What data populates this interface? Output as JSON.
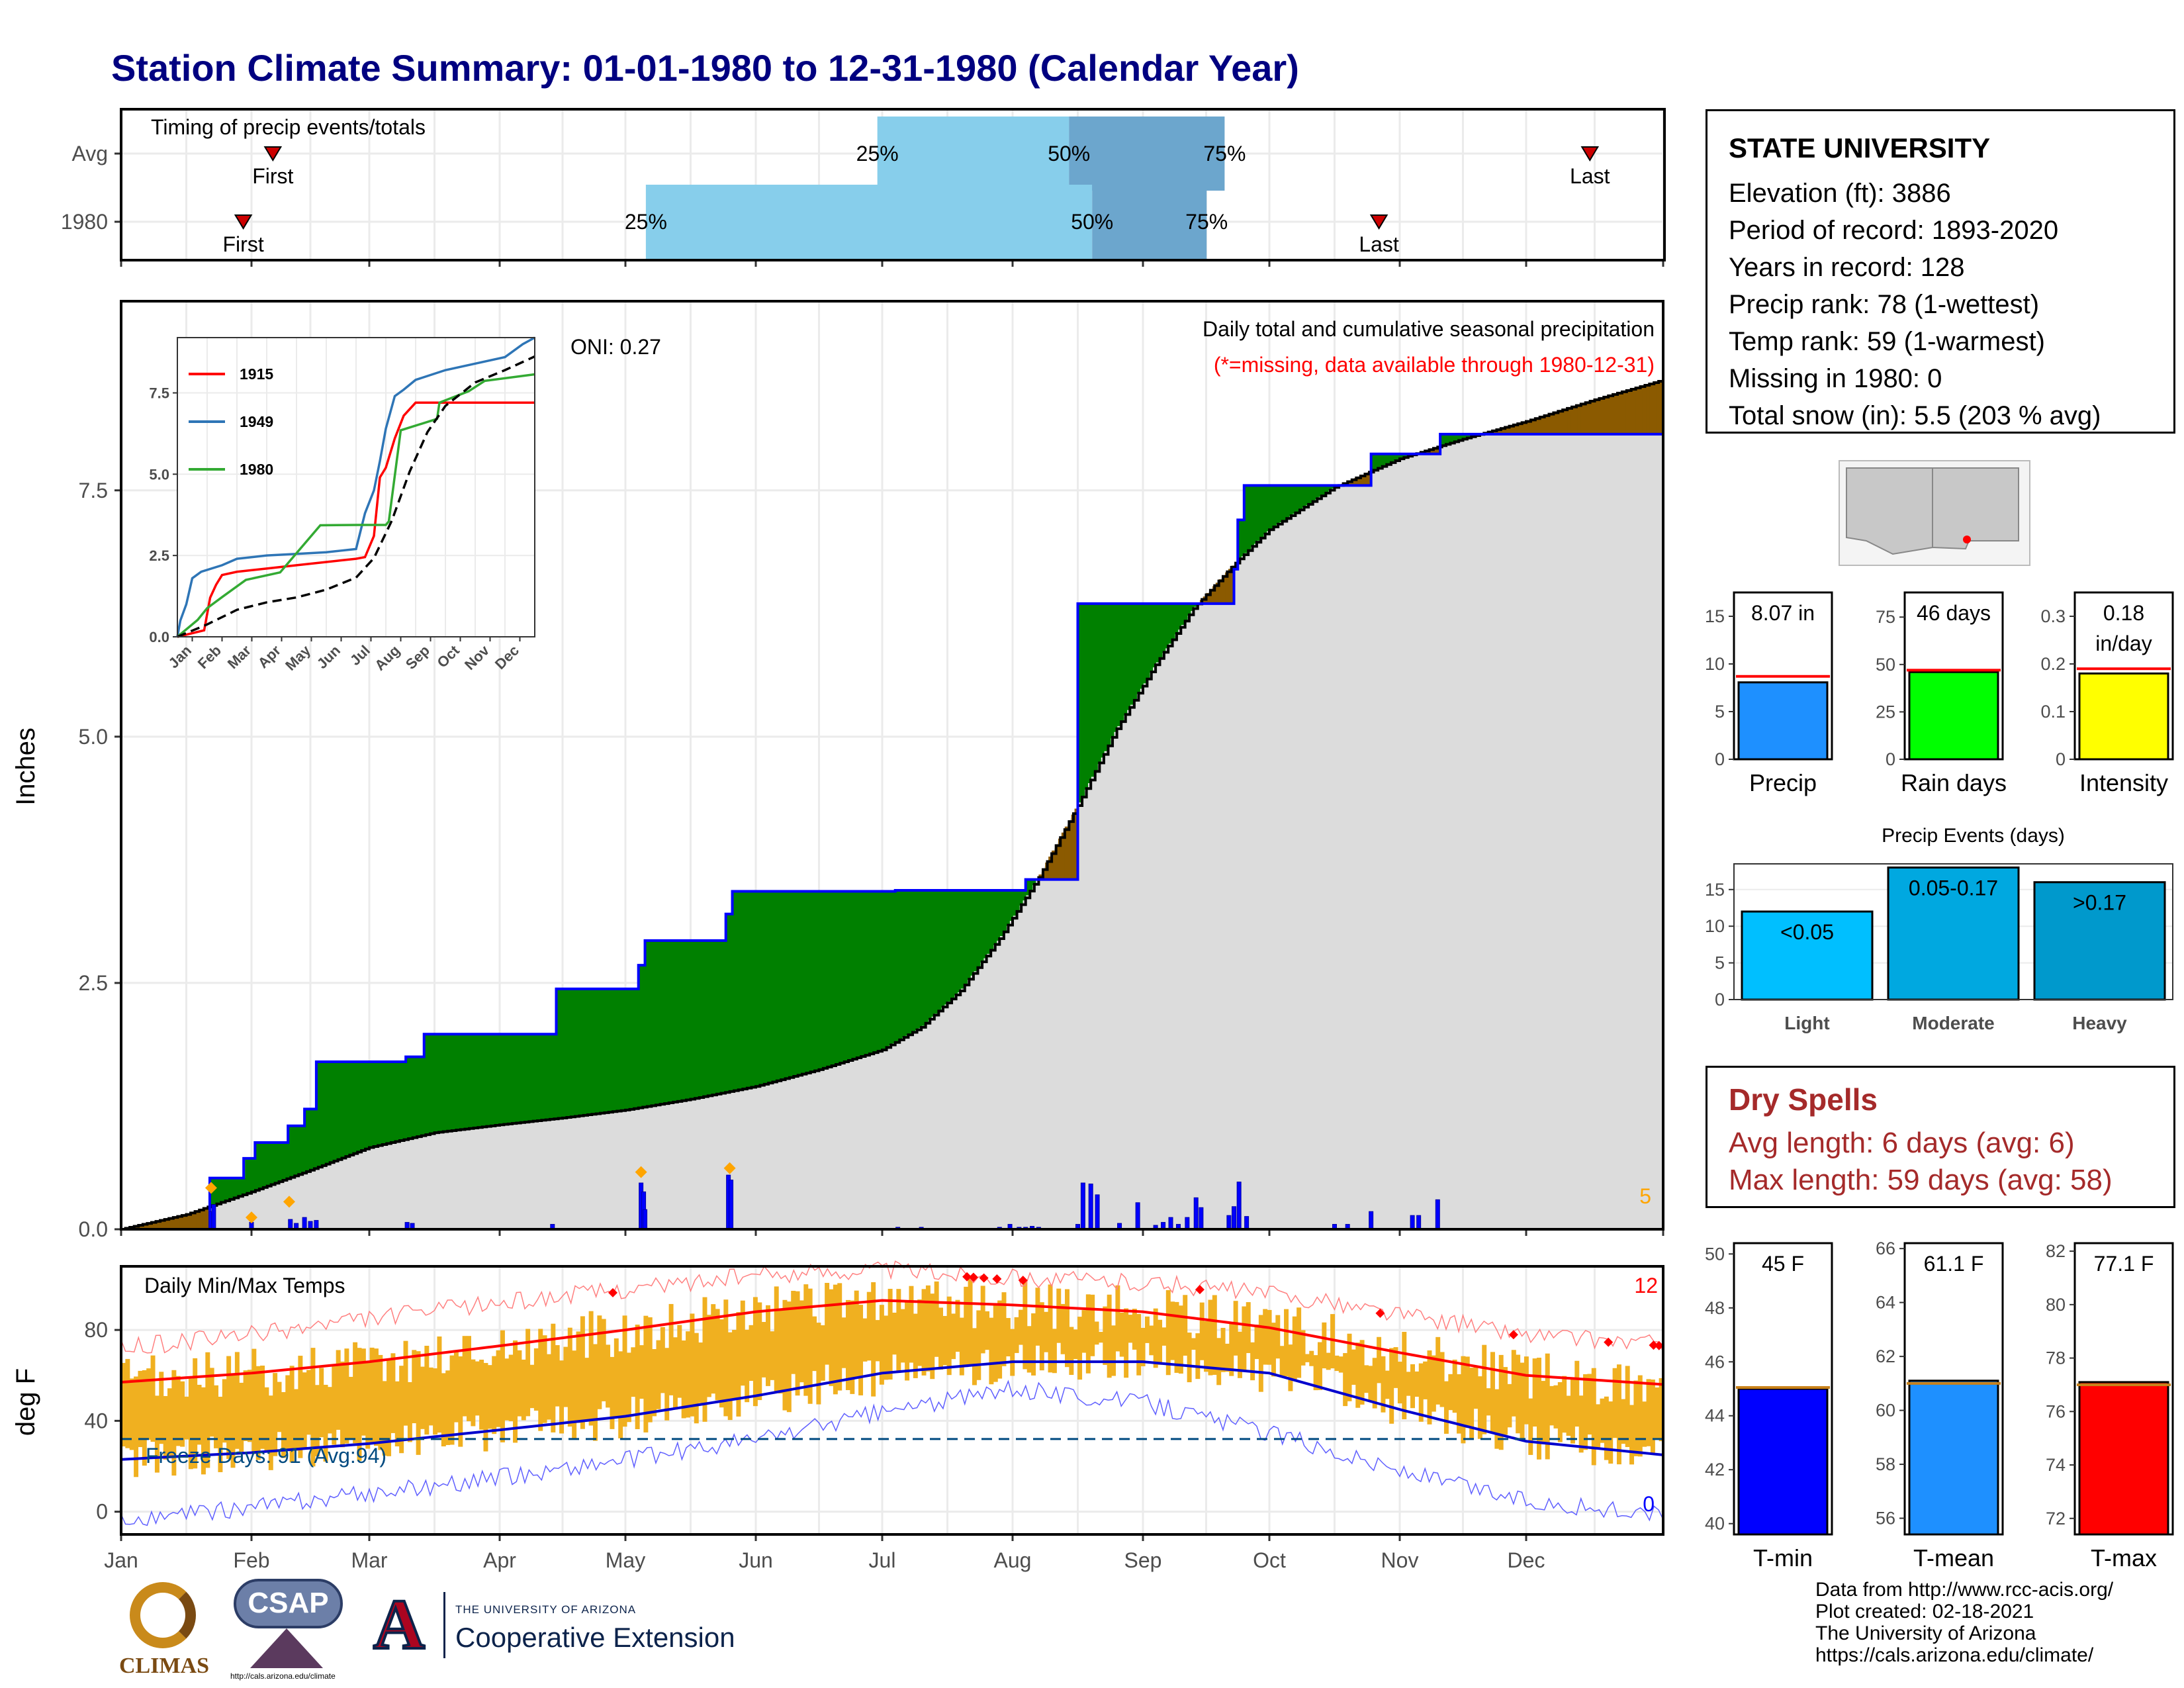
{
  "title": "Station Climate Summary: 01-01-1980 to 12-31-1980 (Calendar Year)",
  "station": {
    "name": "STATE UNIVERSITY",
    "lines": [
      "Elevation (ft): 3886",
      "Period of record: 1893-2020",
      "Years in record: 128",
      "Precip rank: 78 (1-wettest)",
      "Temp rank: 59 (1-warmest)",
      "Missing in 1980: 0",
      "Total snow (in): 5.5 (203 % avg)"
    ]
  },
  "dry_spells": {
    "title": "Dry Spells",
    "avg": "Avg length: 6 days (avg: 6)",
    "max": "Max length: 59 days (avg: 58)"
  },
  "credits": [
    "Data from http://www.rcc-acis.org/",
    "Plot created: 02-18-2021",
    "The University of Arizona",
    "https://cals.arizona.edu/climate/"
  ],
  "logos": {
    "climas": "CLIMAS",
    "csap": "CSAP",
    "csap_url": "http://cals.arizona.edu/climate",
    "ua_small": "THE UNIVERSITY OF ARIZONA",
    "ua_big": "Cooperative Extension",
    "ua_mark": "A"
  },
  "colors": {
    "title": "#000080",
    "timing_light": "#87ceeb",
    "timing_dark": "#6ca6cd",
    "surplus": "#008000",
    "deficit": "#8b5a00",
    "climatology_fill": "#dcdcdc",
    "daily_bar": "#0000ff",
    "temp_bar": "#f0b020",
    "tmax_line": "#ff0000",
    "tmin_line": "#0000cd",
    "precip_bar": "#1e90ff",
    "raindays_bar": "#00ff00",
    "intensity_bar": "#ffff00",
    "tmin_bar": "#0000ff",
    "tmean_bar": "#1e90ff",
    "tmax_bar": "#ff0000",
    "light_bar": "#00bfff",
    "moderate_bar": "#00a8e0",
    "heavy_bar": "#0099cc"
  },
  "chart_data": [
    {
      "id": "timing",
      "type": "bar",
      "title": "Timing of precip events/totals",
      "rows": [
        {
          "label": "Avg",
          "first": 1.18,
          "q25": 5.88,
          "q50": 7.37,
          "q75": 8.58,
          "last": 11.42
        },
        {
          "label": "1980",
          "first": 0.95,
          "q25": 4.08,
          "q50": 7.55,
          "q75": 8.44,
          "last": 9.78
        }
      ],
      "marker_labels": {
        "first": "First",
        "last": "Last",
        "q25": "25%",
        "q50": "50%",
        "q75": "75%"
      },
      "xlim": [
        0,
        12
      ]
    },
    {
      "id": "precip",
      "type": "area",
      "title": "Daily total and cumulative seasonal precipitation",
      "subtitle": "(*=missing, data available through 1980-12-31)",
      "ylabel": "Inches",
      "ylim": [
        0,
        9.42
      ],
      "yticks": [
        0.0,
        2.5,
        5.0,
        7.5
      ],
      "oni": "ONI: 0.27",
      "corner_count": "5",
      "x_month_ticks": [
        "Jan",
        "Feb",
        "Mar",
        "Apr",
        "May",
        "Jun",
        "Jul",
        "Aug",
        "Sep",
        "Oct",
        "Nov",
        "Dec"
      ],
      "climatology_cumulative": {
        "x": [
          0,
          0.5,
          1,
          1.5,
          2,
          2.5,
          3,
          3.5,
          4,
          4.5,
          5,
          5.5,
          6,
          6.3,
          6.6,
          6.9,
          7.2,
          7.5,
          7.8,
          8.1,
          8.4,
          8.7,
          9,
          9.5,
          10,
          10.5,
          11,
          11.5,
          12
        ],
        "y": [
          0,
          0.15,
          0.38,
          0.6,
          0.83,
          0.98,
          1.06,
          1.13,
          1.21,
          1.32,
          1.45,
          1.62,
          1.82,
          2.05,
          2.42,
          2.95,
          3.57,
          4.3,
          5.08,
          5.73,
          6.3,
          6.72,
          7.1,
          7.53,
          7.82,
          8.02,
          8.2,
          8.42,
          8.62
        ]
      },
      "observed_cumulative": {
        "x": [
          0,
          0.68,
          0.68,
          0.94,
          0.94,
          1.03,
          1.03,
          1.31,
          1.31,
          1.45,
          1.45,
          1.55,
          1.55,
          2.28,
          2.28,
          2.42,
          2.42,
          3.45,
          3.45,
          4.1,
          4.1,
          4.15,
          4.15,
          4.77,
          4.77,
          4.82,
          4.82,
          6.1,
          6.1,
          6.45,
          6.45,
          7.02,
          7.02,
          7.1,
          7.1,
          7.5,
          7.5,
          8.72,
          8.72,
          8.75,
          8.75,
          8.8,
          8.8,
          9.78,
          9.78,
          10.32,
          10.32,
          10.55,
          10.55,
          12
        ],
        "y": [
          0,
          0,
          0.52,
          0.52,
          0.72,
          0.72,
          0.88,
          0.88,
          1.05,
          1.05,
          1.22,
          1.22,
          1.7,
          1.7,
          1.75,
          1.75,
          1.98,
          1.98,
          2.44,
          2.44,
          2.68,
          2.68,
          2.93,
          2.93,
          3.2,
          3.2,
          3.43,
          3.43,
          3.44,
          3.44,
          3.44,
          3.44,
          3.44,
          3.44,
          3.55,
          3.55,
          6.35,
          6.35,
          6.7,
          6.7,
          7.2,
          7.2,
          7.55,
          7.55,
          7.87,
          7.87,
          8.07,
          8.07,
          8.07,
          8.07
        ]
      },
      "daily_precip": {
        "x": [
          0.69,
          0.71,
          1.0,
          1.33,
          1.38,
          1.45,
          1.5,
          1.55,
          2.29,
          2.33,
          3.42,
          4.12,
          4.14,
          4.15,
          4.79,
          4.81,
          6.12,
          6.3,
          6.9,
          6.98,
          7.05,
          7.1,
          7.15,
          7.2,
          7.5,
          7.54,
          7.6,
          7.65,
          7.82,
          7.96,
          8.1,
          8.16,
          8.22,
          8.28,
          8.35,
          8.42,
          8.46,
          8.68,
          8.72,
          8.76,
          8.82,
          9.5,
          9.6,
          9.78,
          10.1,
          10.15,
          10.3
        ],
        "y": [
          0.18,
          0.25,
          0.07,
          0.1,
          0.06,
          0.12,
          0.08,
          0.09,
          0.07,
          0.06,
          0.05,
          0.47,
          0.38,
          0.2,
          0.55,
          0.5,
          0.02,
          0.02,
          0.02,
          0.05,
          0.02,
          0.02,
          0.03,
          0.02,
          0.05,
          0.47,
          0.46,
          0.35,
          0.06,
          0.27,
          0.04,
          0.07,
          0.12,
          0.05,
          0.12,
          0.32,
          0.22,
          0.14,
          0.23,
          0.48,
          0.13,
          0.05,
          0.05,
          0.18,
          0.14,
          0.14,
          0.3
        ]
      },
      "snow_markers": {
        "x": [
          0.69,
          1.0,
          1.32,
          4.12,
          4.8
        ],
        "y": [
          0.42,
          0.12,
          0.28,
          0.58,
          0.62
        ]
      },
      "inset": {
        "type": "line",
        "xlabels": [
          "Jan",
          "Feb",
          "Mar",
          "Apr",
          "May",
          "Jun",
          "Jul",
          "Aug",
          "Sep",
          "Oct",
          "Nov",
          "Dec"
        ],
        "yticks": [
          0.0,
          2.5,
          5.0,
          7.5
        ],
        "ylim": [
          0,
          9.2
        ],
        "series": [
          {
            "name": "1915",
            "color": "#ff0000",
            "x": [
              0,
              0.9,
              1.1,
              1.3,
              1.5,
              2,
              3,
              4,
              5,
              5.5,
              6,
              6.3,
              6.6,
              6.8,
              7,
              7.3,
              7.6,
              8,
              9,
              10,
              11,
              12
            ],
            "y": [
              0,
              0.2,
              1.2,
              1.6,
              1.9,
              2.0,
              2.1,
              2.2,
              2.3,
              2.35,
              2.4,
              2.45,
              3.1,
              4.9,
              5.2,
              6.1,
              6.8,
              7.2,
              7.2,
              7.2,
              7.2,
              7.2
            ]
          },
          {
            "name": "1949",
            "color": "#2e75b6",
            "x": [
              0,
              0.1,
              0.3,
              0.5,
              0.8,
              1.5,
              2,
              3,
              4,
              5,
              5.5,
              6,
              6.3,
              6.6,
              6.8,
              7,
              7.3,
              7.6,
              8,
              9,
              10,
              11,
              11.6,
              12
            ],
            "y": [
              0,
              0.5,
              1.0,
              1.8,
              2.0,
              2.2,
              2.4,
              2.5,
              2.55,
              2.6,
              2.65,
              2.7,
              3.8,
              4.5,
              5.4,
              6.4,
              7.4,
              7.6,
              7.9,
              8.2,
              8.4,
              8.6,
              9.0,
              9.2
            ]
          },
          {
            "name": "1980",
            "color": "#33aa33",
            "x": [
              0,
              0.68,
              1.0,
              1.5,
              2.3,
              3.45,
              4.1,
              4.8,
              6.1,
              7.0,
              7.1,
              7.5,
              8.72,
              8.8,
              9.78,
              10.32,
              12
            ],
            "y": [
              0,
              0.52,
              0.88,
              1.22,
              1.75,
              1.98,
              2.68,
              3.43,
              3.44,
              3.44,
              3.55,
              6.35,
              6.7,
              7.2,
              7.55,
              7.87,
              8.07
            ]
          },
          {
            "name": "",
            "color": "#000000",
            "dashed": true,
            "x": [
              0,
              1,
              2,
              3,
              4,
              5,
              6,
              6.6,
              7.2,
              7.8,
              8.4,
              9,
              10,
              11,
              12
            ],
            "y": [
              0,
              0.38,
              0.83,
              1.06,
              1.21,
              1.45,
              1.82,
              2.42,
              3.57,
              5.08,
              6.3,
              7.1,
              7.82,
              8.2,
              8.62
            ]
          }
        ]
      }
    },
    {
      "id": "temps",
      "type": "bar",
      "title": "Daily Min/Max Temps",
      "ylabel": "deg F",
      "ylim": [
        -10,
        108
      ],
      "yticks": [
        0,
        40,
        80
      ],
      "freeze_line": 32,
      "freeze_text": "Freeze Days: 91 (Avg:94)",
      "count_hot": "12",
      "count_cold": "0",
      "avg_tmax": {
        "x": [
          0,
          1,
          2,
          3,
          4,
          5,
          6,
          7,
          8,
          9,
          10,
          11,
          12
        ],
        "y": [
          57,
          61,
          66,
          73,
          80,
          88,
          93,
          91,
          88,
          81,
          70,
          60,
          56
        ]
      },
      "avg_tmin": {
        "x": [
          0,
          1,
          2,
          3,
          4,
          5,
          6,
          7,
          8,
          9,
          10,
          11,
          12
        ],
        "y": [
          23,
          26,
          30,
          36,
          42,
          51,
          61,
          66,
          66,
          61,
          45,
          31,
          25
        ]
      },
      "record_tmax": {
        "x": [
          0,
          1,
          2,
          3,
          4,
          5,
          6,
          7,
          8,
          9,
          10,
          11,
          12
        ],
        "y": [
          72,
          78,
          85,
          92,
          98,
          104,
          107,
          103,
          101,
          96,
          87,
          78,
          74
        ]
      },
      "record_tmin": {
        "x": [
          0,
          1,
          2,
          3,
          4,
          5,
          6,
          7,
          8,
          9,
          10,
          11,
          12
        ],
        "y": [
          -5,
          2,
          8,
          15,
          23,
          32,
          44,
          54,
          48,
          35,
          18,
          5,
          -2
        ]
      },
      "month_ticks": [
        "Jan",
        "Feb",
        "Mar",
        "Apr",
        "May",
        "Jun",
        "Jul",
        "Aug",
        "Sep",
        "Oct",
        "Nov",
        "Dec"
      ]
    },
    {
      "id": "precip_summary",
      "type": "bar",
      "panels": [
        {
          "name": "Precip",
          "label": "8.07 in",
          "value": 8.07,
          "avg": 8.7,
          "ylim": [
            0,
            17.5
          ],
          "yticks": [
            0,
            5,
            10,
            15
          ],
          "color": "#1e90ff"
        },
        {
          "name": "Rain days",
          "label": "46 days",
          "value": 46,
          "avg": 47,
          "ylim": [
            0,
            88
          ],
          "yticks": [
            0,
            25,
            50,
            75
          ],
          "color": "#00ff00"
        },
        {
          "name": "Intensity",
          "label": "0.18",
          "label2": "in/day",
          "value": 0.18,
          "avg": 0.19,
          "ylim": [
            0,
            0.35
          ],
          "yticks": [
            0.0,
            0.1,
            0.2,
            0.3
          ],
          "color": "#ffff00"
        }
      ]
    },
    {
      "id": "precip_events",
      "type": "bar",
      "title": "Precip Events (days)",
      "categories": [
        "Light",
        "Moderate",
        "Heavy"
      ],
      "values": [
        12,
        18,
        16
      ],
      "labels": [
        "<0.05",
        "0.05-0.17",
        ">0.17"
      ],
      "ylim": [
        0,
        18.5
      ],
      "yticks": [
        0,
        5,
        10,
        15
      ]
    },
    {
      "id": "temp_summary",
      "type": "bar",
      "panels": [
        {
          "name": "T-min",
          "label": "45 F",
          "value": 45,
          "avg": 45.05,
          "ylim": [
            39.6,
            50.4
          ],
          "yticks": [
            40,
            42,
            44,
            46,
            48,
            50
          ],
          "color": "#0000ff"
        },
        {
          "name": "T-mean",
          "label": "61.1 F",
          "value": 61.1,
          "avg": 61.0,
          "ylim": [
            55.4,
            66.2
          ],
          "yticks": [
            56,
            58,
            60,
            62,
            64,
            66
          ],
          "color": "#1e90ff"
        },
        {
          "name": "T-max",
          "label": "77.1 F",
          "value": 77.1,
          "avg": 77.0,
          "ylim": [
            71.4,
            82.3
          ],
          "yticks": [
            72,
            74,
            76,
            78,
            80,
            82
          ],
          "color": "#ff0000"
        }
      ]
    }
  ]
}
